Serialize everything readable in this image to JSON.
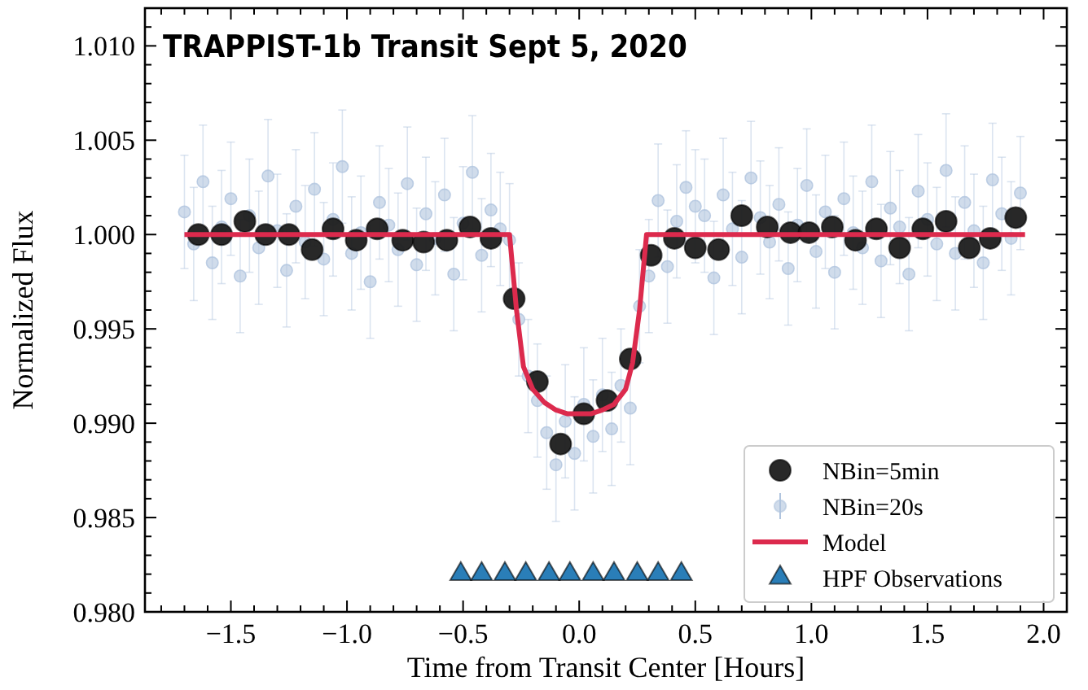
{
  "chart_data": {
    "type": "scatter",
    "title": "TRAPPIST-1b Transit Sept 5, 2020",
    "xlabel": "Time from Transit Center [Hours]",
    "ylabel": "Normalized Flux",
    "xlim": [
      -1.87,
      2.1
    ],
    "ylim": [
      0.98,
      1.012
    ],
    "xticks": [
      {
        "value": -1.8,
        "label": null
      },
      {
        "value": -1.7,
        "label": null
      },
      {
        "value": -1.6,
        "label": null
      },
      {
        "value": -1.5,
        "label": "−1.5"
      },
      {
        "value": -1.4,
        "label": null
      },
      {
        "value": -1.3,
        "label": null
      },
      {
        "value": -1.2,
        "label": null
      },
      {
        "value": -1.1,
        "label": null
      },
      {
        "value": -1.0,
        "label": "−1.0"
      },
      {
        "value": -0.9,
        "label": null
      },
      {
        "value": -0.8,
        "label": null
      },
      {
        "value": -0.7,
        "label": null
      },
      {
        "value": -0.6,
        "label": null
      },
      {
        "value": -0.5,
        "label": "−0.5"
      },
      {
        "value": -0.4,
        "label": null
      },
      {
        "value": -0.3,
        "label": null
      },
      {
        "value": -0.2,
        "label": null
      },
      {
        "value": -0.1,
        "label": null
      },
      {
        "value": 0,
        "label": "0.0"
      },
      {
        "value": 0.1,
        "label": null
      },
      {
        "value": 0.2,
        "label": null
      },
      {
        "value": 0.3,
        "label": null
      },
      {
        "value": 0.4,
        "label": null
      },
      {
        "value": 0.5,
        "label": "0.5"
      },
      {
        "value": 0.6,
        "label": null
      },
      {
        "value": 0.7,
        "label": null
      },
      {
        "value": 0.8,
        "label": null
      },
      {
        "value": 0.9,
        "label": null
      },
      {
        "value": 1.0,
        "label": "1.0"
      },
      {
        "value": 1.1,
        "label": null
      },
      {
        "value": 1.2,
        "label": null
      },
      {
        "value": 1.3,
        "label": null
      },
      {
        "value": 1.4,
        "label": null
      },
      {
        "value": 1.5,
        "label": "1.5"
      },
      {
        "value": 1.6,
        "label": null
      },
      {
        "value": 1.7,
        "label": null
      },
      {
        "value": 1.8,
        "label": null
      },
      {
        "value": 1.9,
        "label": null
      },
      {
        "value": 2.0,
        "label": "2.0"
      }
    ],
    "yticks": [
      {
        "value": 0.98,
        "label": "0.980"
      },
      {
        "value": 0.981,
        "label": null
      },
      {
        "value": 0.982,
        "label": null
      },
      {
        "value": 0.983,
        "label": null
      },
      {
        "value": 0.984,
        "label": null
      },
      {
        "value": 0.985,
        "label": "0.985"
      },
      {
        "value": 0.986,
        "label": null
      },
      {
        "value": 0.987,
        "label": null
      },
      {
        "value": 0.988,
        "label": null
      },
      {
        "value": 0.989,
        "label": null
      },
      {
        "value": 0.99,
        "label": "0.990"
      },
      {
        "value": 0.991,
        "label": null
      },
      {
        "value": 0.992,
        "label": null
      },
      {
        "value": 0.993,
        "label": null
      },
      {
        "value": 0.994,
        "label": null
      },
      {
        "value": 0.995,
        "label": "0.995"
      },
      {
        "value": 0.996,
        "label": null
      },
      {
        "value": 0.997,
        "label": null
      },
      {
        "value": 0.998,
        "label": null
      },
      {
        "value": 0.999,
        "label": null
      },
      {
        "value": 1.0,
        "label": "1.000"
      },
      {
        "value": 1.001,
        "label": null
      },
      {
        "value": 1.002,
        "label": null
      },
      {
        "value": 1.003,
        "label": null
      },
      {
        "value": 1.004,
        "label": null
      },
      {
        "value": 1.005,
        "label": "1.005"
      },
      {
        "value": 1.006,
        "label": null
      },
      {
        "value": 1.007,
        "label": null
      },
      {
        "value": 1.008,
        "label": null
      },
      {
        "value": 1.009,
        "label": null
      },
      {
        "value": 1.01,
        "label": "1.010"
      },
      {
        "value": 1.011,
        "label": null
      }
    ],
    "legend": "bottom right",
    "grid": false,
    "series": [
      {
        "name": "NBin=5min",
        "marker": "circle",
        "color": "#1c1c1c",
        "x": [
          -1.64,
          -1.54,
          -1.44,
          -1.35,
          -1.25,
          -1.15,
          -1.06,
          -0.96,
          -0.87,
          -0.76,
          -0.67,
          -0.57,
          -0.47,
          -0.38,
          -0.28,
          -0.18,
          -0.08,
          0.02,
          0.12,
          0.22,
          0.31,
          0.41,
          0.5,
          0.6,
          0.7,
          0.81,
          0.91,
          0.99,
          1.09,
          1.19,
          1.28,
          1.38,
          1.48,
          1.58,
          1.68,
          1.77,
          1.88
        ],
        "values": [
          1.0,
          1.0,
          1.0007,
          1.0,
          1.0,
          0.9992,
          1.0003,
          0.9997,
          1.0003,
          0.9997,
          0.9996,
          0.9997,
          1.0004,
          0.9998,
          0.9966,
          0.9922,
          0.9889,
          0.9905,
          0.9912,
          0.9934,
          0.9989,
          0.9998,
          0.9993,
          0.9992,
          1.001,
          1.0004,
          1.0001,
          1.0001,
          1.0004,
          0.9997,
          1.0003,
          0.9993,
          1.0003,
          1.0007,
          0.9993,
          0.9998,
          1.0009
        ]
      },
      {
        "name": "NBin=20s",
        "marker": "circle",
        "color": "#b0c4de",
        "errors": [
          0.003,
          0.003,
          0.003,
          0.003,
          0.003,
          0.003,
          0.003,
          0.003,
          0.003,
          0.003,
          0.003,
          0.003,
          0.003,
          0.003,
          0.003,
          0.003,
          0.003,
          0.003,
          0.003,
          0.003,
          0.003,
          0.003,
          0.003,
          0.003,
          0.003,
          0.003,
          0.003,
          0.003,
          0.003,
          0.003,
          0.003,
          0.003,
          0.003,
          0.003,
          0.003,
          0.003,
          0.003,
          0.003,
          0.003,
          0.003,
          0.003,
          0.003,
          0.003,
          0.003,
          0.003,
          0.003,
          0.003,
          0.003,
          0.003,
          0.003,
          0.003,
          0.003,
          0.003,
          0.003,
          0.003,
          0.003,
          0.003,
          0.003,
          0.003,
          0.003,
          0.003,
          0.003,
          0.003,
          0.003,
          0.003,
          0.003,
          0.003,
          0.003,
          0.003,
          0.003,
          0.003,
          0.003,
          0.003,
          0.003,
          0.003,
          0.003,
          0.003,
          0.003,
          0.003,
          0.003,
          0.003,
          0.003,
          0.003,
          0.003,
          0.003,
          0.003,
          0.003,
          0.003,
          0.003,
          0.003,
          0.003
        ],
        "x": [
          -1.7,
          -1.66,
          -1.62,
          -1.58,
          -1.54,
          -1.5,
          -1.46,
          -1.42,
          -1.38,
          -1.34,
          -1.3,
          -1.26,
          -1.22,
          -1.18,
          -1.14,
          -1.1,
          -1.06,
          -1.02,
          -0.98,
          -0.94,
          -0.9,
          -0.86,
          -0.82,
          -0.78,
          -0.74,
          -0.7,
          -0.66,
          -0.62,
          -0.58,
          -0.54,
          -0.5,
          -0.46,
          -0.42,
          -0.38,
          -0.34,
          -0.3,
          -0.26,
          -0.22,
          -0.18,
          -0.14,
          -0.1,
          -0.06,
          -0.02,
          0.02,
          0.06,
          0.1,
          0.14,
          0.18,
          0.22,
          0.26,
          0.3,
          0.34,
          0.38,
          0.42,
          0.46,
          0.5,
          0.54,
          0.58,
          0.62,
          0.66,
          0.7,
          0.74,
          0.78,
          0.82,
          0.86,
          0.9,
          0.94,
          0.98,
          1.02,
          1.06,
          1.1,
          1.14,
          1.18,
          1.22,
          1.26,
          1.3,
          1.34,
          1.38,
          1.42,
          1.46,
          1.5,
          1.54,
          1.58,
          1.62,
          1.66,
          1.7,
          1.74,
          1.78,
          1.82,
          1.86,
          1.9
        ],
        "values": [
          1.0012,
          0.9995,
          1.0028,
          0.9985,
          1.0004,
          1.0019,
          0.9978,
          1.001,
          0.9993,
          1.0031,
          1.0002,
          0.9981,
          1.0015,
          0.9996,
          1.0024,
          0.9987,
          1.0008,
          1.0036,
          0.999,
          1.0001,
          0.9975,
          1.0017,
          1.0005,
          0.9992,
          1.0027,
          0.9984,
          1.0011,
          0.9998,
          1.0021,
          0.9979,
          1.0006,
          1.0033,
          0.9989,
          1.0013,
          1.0003,
          0.9997,
          0.9955,
          0.9925,
          0.9912,
          0.9895,
          0.9878,
          0.9901,
          0.9884,
          0.991,
          0.9893,
          0.9915,
          0.9897,
          0.992,
          0.9908,
          0.9962,
          0.9978,
          1.0018,
          0.9983,
          1.0007,
          1.0025,
          1.0015,
          1.001,
          0.9977,
          1.0021,
          1.0003,
          0.9988,
          1.003,
          1.0009,
          0.9996,
          1.0016,
          0.9982,
          1.0005,
          1.0026,
          0.9991,
          1.0012,
          0.998,
          1.0019,
          1.0001,
          0.9993,
          1.0028,
          0.9986,
          1.0014,
          1.0004,
          0.9979,
          1.0023,
          1.0008,
          0.9995,
          1.0034,
          0.999,
          1.0017,
          1.0002,
          0.9985,
          1.0029,
          1.0011,
          0.9998,
          1.0022
        ]
      },
      {
        "name": "Model",
        "type": "line",
        "marker": "none",
        "line_style": "solid",
        "color": "#dc2a4d",
        "x": [
          -1.7,
          -0.3,
          -0.27,
          -0.24,
          -0.2,
          -0.15,
          -0.1,
          -0.05,
          0,
          0.05,
          0.1,
          0.15,
          0.2,
          0.23,
          0.26,
          0.29,
          1.92
        ],
        "values": [
          1.0,
          1.0,
          0.996,
          0.993,
          0.9918,
          0.9911,
          0.9907,
          0.9905,
          0.9905,
          0.9905,
          0.9907,
          0.991,
          0.9918,
          0.9932,
          0.996,
          1.0,
          1.0
        ]
      },
      {
        "name": "HPF Observations",
        "marker": "triangle",
        "color": "#1f77b4",
        "x": [
          -0.51,
          -0.42,
          -0.32,
          -0.23,
          -0.13,
          -0.04,
          0.06,
          0.15,
          0.25,
          0.34,
          0.44
        ],
        "values": [
          0.982,
          0.982,
          0.982,
          0.982,
          0.982,
          0.982,
          0.982,
          0.982,
          0.982,
          0.982,
          0.982
        ]
      }
    ]
  }
}
